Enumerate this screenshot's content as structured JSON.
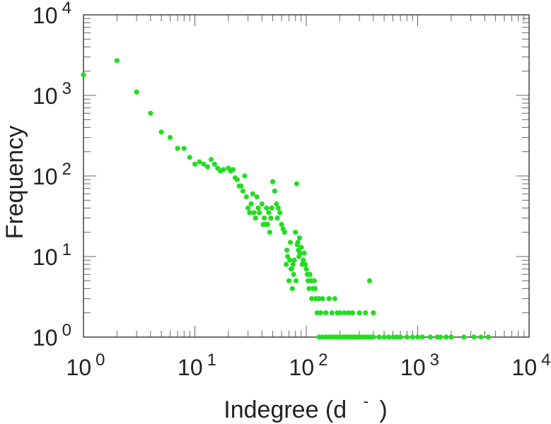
{
  "chart_data": {
    "type": "scatter",
    "xlabel": "Indegree (d",
    "xlabel_mark": "-",
    "xlabel_close": ")",
    "ylabel": "Frequency",
    "xscale": "log",
    "yscale": "log",
    "xlim": [
      1,
      10000
    ],
    "ylim": [
      1,
      10000
    ],
    "grid": false,
    "marker_color": "#22dd22",
    "x_ticks": [
      {
        "base": "10",
        "exp": "0"
      },
      {
        "base": "10",
        "exp": "1"
      },
      {
        "base": "10",
        "exp": "2"
      },
      {
        "base": "10",
        "exp": "3"
      },
      {
        "base": "10",
        "exp": "4"
      }
    ],
    "y_ticks": [
      {
        "base": "10",
        "exp": "0"
      },
      {
        "base": "10",
        "exp": "1"
      },
      {
        "base": "10",
        "exp": "2"
      },
      {
        "base": "10",
        "exp": "3"
      },
      {
        "base": "10",
        "exp": "4"
      }
    ],
    "points": [
      [
        1,
        1800
      ],
      [
        2,
        2700
      ],
      [
        3,
        1100
      ],
      [
        4,
        600
      ],
      [
        5,
        350
      ],
      [
        6,
        300
      ],
      [
        7,
        220
      ],
      [
        8,
        220
      ],
      [
        9,
        170
      ],
      [
        10,
        140
      ],
      [
        11,
        150
      ],
      [
        12,
        140
      ],
      [
        13,
        130
      ],
      [
        14,
        160
      ],
      [
        15,
        140
      ],
      [
        16,
        125
      ],
      [
        17,
        115
      ],
      [
        18,
        120
      ],
      [
        20,
        125
      ],
      [
        21,
        115
      ],
      [
        22,
        120
      ],
      [
        23,
        95
      ],
      [
        24,
        90
      ],
      [
        25,
        75
      ],
      [
        26,
        75
      ],
      [
        27,
        65
      ],
      [
        28,
        100
      ],
      [
        29,
        55
      ],
      [
        30,
        40
      ],
      [
        31,
        35
      ],
      [
        32,
        45
      ],
      [
        33,
        60
      ],
      [
        34,
        35
      ],
      [
        35,
        30
      ],
      [
        36,
        55
      ],
      [
        37,
        40
      ],
      [
        38,
        35
      ],
      [
        40,
        45
      ],
      [
        41,
        25
      ],
      [
        42,
        30
      ],
      [
        43,
        25
      ],
      [
        44,
        40
      ],
      [
        45,
        25
      ],
      [
        46,
        35
      ],
      [
        47,
        20
      ],
      [
        48,
        30
      ],
      [
        49,
        40
      ],
      [
        50,
        85
      ],
      [
        52,
        65
      ],
      [
        54,
        45
      ],
      [
        55,
        30
      ],
      [
        56,
        40
      ],
      [
        58,
        35
      ],
      [
        60,
        25
      ],
      [
        62,
        22
      ],
      [
        64,
        20
      ],
      [
        66,
        8
      ],
      [
        67,
        12
      ],
      [
        68,
        10
      ],
      [
        70,
        5
      ],
      [
        71,
        9
      ],
      [
        72,
        15
      ],
      [
        73,
        7
      ],
      [
        74,
        7
      ],
      [
        75,
        4
      ],
      [
        76,
        8
      ],
      [
        77,
        6
      ],
      [
        78,
        9
      ],
      [
        80,
        20
      ],
      [
        81,
        5
      ],
      [
        82,
        80
      ],
      [
        83,
        14
      ],
      [
        84,
        15
      ],
      [
        85,
        12
      ],
      [
        86,
        10
      ],
      [
        87,
        17
      ],
      [
        88,
        11
      ],
      [
        90,
        13
      ],
      [
        92,
        8
      ],
      [
        94,
        9
      ],
      [
        96,
        11
      ],
      [
        98,
        8
      ],
      [
        100,
        7
      ],
      [
        102,
        6
      ],
      [
        104,
        5
      ],
      [
        106,
        4
      ],
      [
        108,
        6
      ],
      [
        110,
        5
      ],
      [
        112,
        3
      ],
      [
        115,
        4
      ],
      [
        118,
        5
      ],
      [
        120,
        4
      ],
      [
        122,
        3
      ],
      [
        125,
        2
      ],
      [
        130,
        3
      ],
      [
        135,
        2
      ],
      [
        140,
        3
      ],
      [
        150,
        2
      ],
      [
        160,
        3
      ],
      [
        170,
        2
      ],
      [
        180,
        3
      ],
      [
        190,
        2
      ],
      [
        200,
        2
      ],
      [
        220,
        2
      ],
      [
        240,
        2
      ],
      [
        260,
        2
      ],
      [
        300,
        2
      ],
      [
        340,
        2
      ],
      [
        370,
        5
      ],
      [
        400,
        2
      ],
      [
        130,
        1
      ],
      [
        140,
        1
      ],
      [
        150,
        1
      ],
      [
        160,
        1
      ],
      [
        170,
        1
      ],
      [
        180,
        1
      ],
      [
        190,
        1
      ],
      [
        200,
        1
      ],
      [
        210,
        1
      ],
      [
        220,
        1
      ],
      [
        230,
        1
      ],
      [
        240,
        1
      ],
      [
        250,
        1
      ],
      [
        260,
        1
      ],
      [
        270,
        1
      ],
      [
        280,
        1
      ],
      [
        290,
        1
      ],
      [
        300,
        1
      ],
      [
        320,
        1
      ],
      [
        340,
        1
      ],
      [
        360,
        1
      ],
      [
        380,
        1
      ],
      [
        400,
        1
      ],
      [
        450,
        1
      ],
      [
        500,
        1
      ],
      [
        550,
        1
      ],
      [
        600,
        1
      ],
      [
        650,
        1
      ],
      [
        700,
        1
      ],
      [
        800,
        1
      ],
      [
        900,
        1
      ],
      [
        1000,
        1
      ],
      [
        1100,
        1
      ],
      [
        1300,
        1
      ],
      [
        1500,
        1
      ],
      [
        1600,
        1
      ],
      [
        1800,
        1
      ],
      [
        2000,
        1
      ],
      [
        2600,
        1
      ],
      [
        3200,
        1
      ],
      [
        3700,
        1
      ],
      [
        4300,
        1
      ]
    ]
  }
}
